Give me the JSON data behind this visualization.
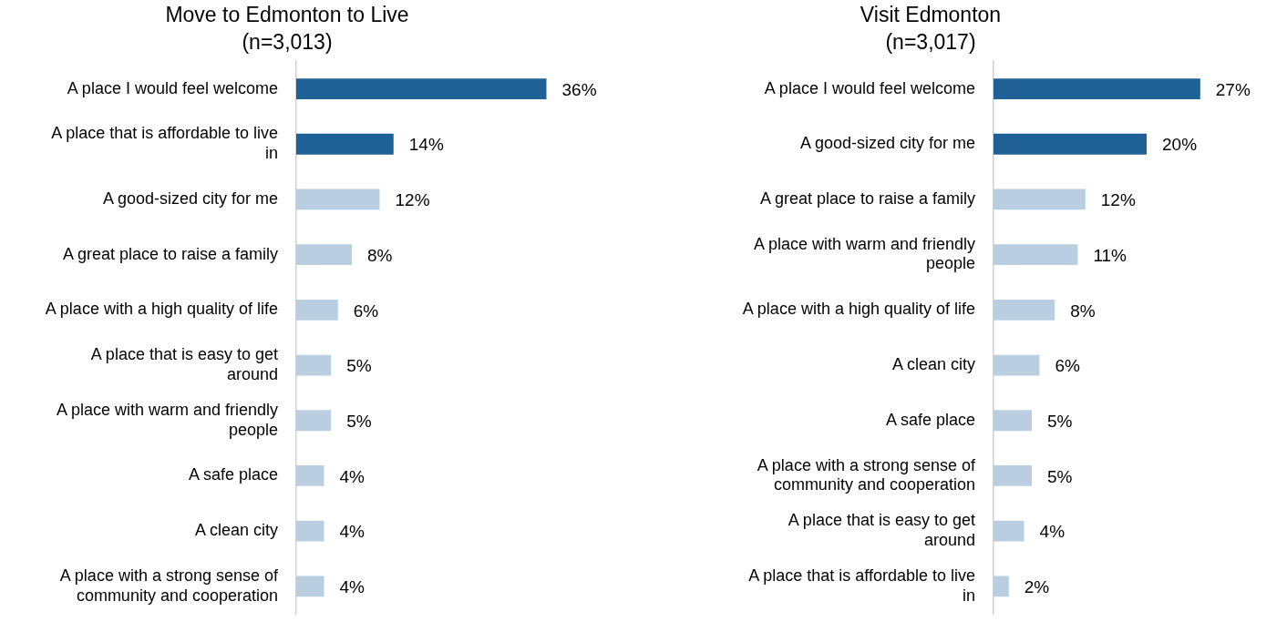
{
  "chart_data": [
    {
      "type": "bar",
      "orientation": "horizontal",
      "title": "Move to Edmonton to Live",
      "subtitle": "(n=3,013)",
      "categories": [
        "A place I would feel welcome",
        "A place that is affordable to live in",
        "A good-sized city for me",
        "A great place to raise a family",
        "A place with a high quality of life",
        "A place that is easy to get around",
        "A place with warm and friendly people",
        "A safe place",
        "A clean city",
        "A place with a strong sense of community and cooperation"
      ],
      "values": [
        36,
        14,
        12,
        8,
        6,
        5,
        5,
        4,
        4,
        4
      ],
      "value_labels": [
        "36%",
        "14%",
        "12%",
        "8%",
        "6%",
        "5%",
        "5%",
        "4%",
        "4%",
        "4%"
      ],
      "colors": [
        "#1f6196",
        "#1f6196",
        "#bacee2",
        "#bacee2",
        "#bacee2",
        "#bacee2",
        "#bacee2",
        "#bacee2",
        "#bacee2",
        "#bacee2"
      ],
      "tick_labels": "y",
      "grid": false,
      "legend": false
    },
    {
      "type": "bar",
      "orientation": "horizontal",
      "title": "Visit Edmonton",
      "subtitle": "(n=3,017)",
      "categories": [
        "A place I would feel welcome",
        "A good-sized city for me",
        "A great place to raise a family",
        "A place with warm and friendly people",
        "A place with a high quality of life",
        "A clean city",
        "A safe place",
        "A place with a strong sense of community and cooperation",
        "A place that is easy to get around",
        "A place that is affordable to live in"
      ],
      "values": [
        27,
        20,
        12,
        11,
        8,
        6,
        5,
        5,
        4,
        2
      ],
      "value_labels": [
        "27%",
        "20%",
        "12%",
        "11%",
        "8%",
        "6%",
        "5%",
        "5%",
        "4%",
        "2%"
      ],
      "colors": [
        "#1f6196",
        "#1f6196",
        "#bacee2",
        "#bacee2",
        "#bacee2",
        "#bacee2",
        "#bacee2",
        "#bacee2",
        "#bacee2",
        "#bacee2"
      ],
      "tick_labels": "y",
      "grid": false,
      "legend": false
    }
  ]
}
